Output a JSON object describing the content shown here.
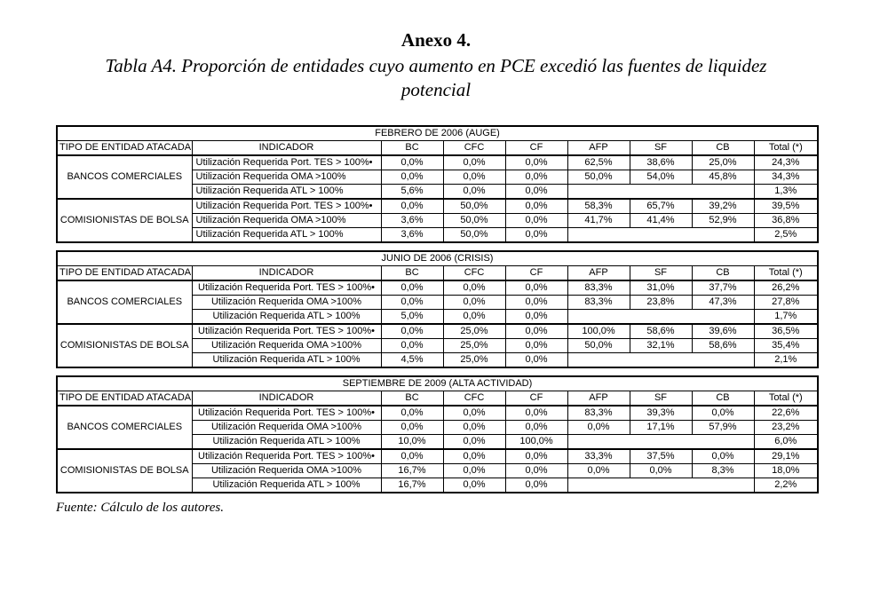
{
  "page": {
    "title": "Anexo 4.",
    "subtitle": "Tabla A4. Proporción de entidades cuyo aumento en PCE excedió las fuentes de liquidez potencial",
    "source_note": "Fuente: Cálculo de los autores."
  },
  "table_columns": [
    "TIPO DE ENTIDAD ATACADA",
    "INDICADOR",
    "BC",
    "CFC",
    "CF",
    "AFP",
    "SF",
    "CB",
    "Total (*)"
  ],
  "tables": [
    {
      "period": "FEBRERO DE 2006 (AUGE)",
      "groups": [
        {
          "entity": "BANCOS COMERCIALES",
          "rows": [
            {
              "indicator": "Utilización Requerida Port. TES > 100%•",
              "values": [
                "0,0%",
                "0,0%",
                "0,0%",
                "62,5%",
                "38,6%",
                "25,0%"
              ],
              "total": "24,3%"
            },
            {
              "indicator": "Utilización Requerida OMA >100%",
              "values": [
                "0,0%",
                "0,0%",
                "0,0%",
                "50,0%",
                "54,0%",
                "45,8%"
              ],
              "total": "34,3%"
            },
            {
              "indicator": "Utilización Requerida ATL > 100%",
              "values": [
                "5,6%",
                "0,0%",
                "0,0%"
              ],
              "blank_span": 3,
              "total": "1,3%"
            }
          ]
        },
        {
          "entity": "COMISIONISTAS DE BOLSA",
          "rows": [
            {
              "indicator": "Utilización Requerida Port. TES > 100%•",
              "values": [
                "0,0%",
                "50,0%",
                "0,0%",
                "58,3%",
                "65,7%",
                "39,2%"
              ],
              "total": "39,5%"
            },
            {
              "indicator": "Utilización Requerida OMA >100%",
              "values": [
                "3,6%",
                "50,0%",
                "0,0%",
                "41,7%",
                "41,4%",
                "52,9%"
              ],
              "total": "36,8%"
            },
            {
              "indicator": "Utilización Requerida ATL > 100%",
              "values": [
                "3,6%",
                "50,0%",
                "0,0%"
              ],
              "blank_span": 3,
              "total": "2,5%"
            }
          ]
        }
      ]
    },
    {
      "period": "JUNIO DE 2006 (CRISIS)",
      "groups": [
        {
          "entity": "BANCOS COMERCIALES",
          "rows": [
            {
              "indicator": "Utilización Requerida Port. TES > 100%•",
              "values": [
                "0,0%",
                "0,0%",
                "0,0%",
                "83,3%",
                "31,0%",
                "37,7%"
              ],
              "total": "26,2%"
            },
            {
              "indicator": "Utilización Requerida OMA >100%",
              "values": [
                "0,0%",
                "0,0%",
                "0,0%",
                "83,3%",
                "23,8%",
                "47,3%"
              ],
              "total": "27,8%"
            },
            {
              "indicator": "Utilización Requerida ATL > 100%",
              "values": [
                "5,0%",
                "0,0%",
                "0,0%"
              ],
              "blank_span": 3,
              "total": "1,7%"
            }
          ]
        },
        {
          "entity": "COMISIONISTAS DE BOLSA",
          "rows": [
            {
              "indicator": "Utilización Requerida Port. TES > 100%•",
              "values": [
                "0,0%",
                "25,0%",
                "0,0%",
                "100,0%",
                "58,6%",
                "39,6%"
              ],
              "total": "36,5%"
            },
            {
              "indicator": "Utilización Requerida OMA >100%",
              "values": [
                "0,0%",
                "25,0%",
                "0,0%",
                "50,0%",
                "32,1%",
                "58,6%"
              ],
              "total": "35,4%"
            },
            {
              "indicator": "Utilización Requerida ATL > 100%",
              "values": [
                "4,5%",
                "25,0%",
                "0,0%"
              ],
              "blank_span": 3,
              "total": "2,1%"
            }
          ]
        }
      ]
    },
    {
      "period": "SEPTIEMBRE DE 2009 (ALTA ACTIVIDAD)",
      "groups": [
        {
          "entity": "BANCOS COMERCIALES",
          "rows": [
            {
              "indicator": "Utilización Requerida Port. TES > 100%•",
              "values": [
                "0,0%",
                "0,0%",
                "0,0%",
                "83,3%",
                "39,3%",
                "0,0%"
              ],
              "total": "22,6%"
            },
            {
              "indicator": "Utilización Requerida OMA >100%",
              "values": [
                "0,0%",
                "0,0%",
                "0,0%",
                "0,0%",
                "17,1%",
                "57,9%"
              ],
              "total": "23,2%"
            },
            {
              "indicator": "Utilización Requerida ATL > 100%",
              "values": [
                "10,0%",
                "0,0%",
                "100,0%"
              ],
              "blank_span": 3,
              "total": "6,0%"
            }
          ]
        },
        {
          "entity": "COMISIONISTAS DE BOLSA",
          "rows": [
            {
              "indicator": "Utilización Requerida Port. TES > 100%•",
              "values": [
                "0,0%",
                "0,0%",
                "0,0%",
                "33,3%",
                "37,5%",
                "0,0%"
              ],
              "total": "29,1%"
            },
            {
              "indicator": "Utilización Requerida OMA >100%",
              "values": [
                "16,7%",
                "0,0%",
                "0,0%",
                "0,0%",
                "0,0%",
                "8,3%"
              ],
              "total": "18,0%"
            },
            {
              "indicator": "Utilización Requerida ATL > 100%",
              "values": [
                "16,7%",
                "0,0%",
                "0,0%"
              ],
              "blank_span": 3,
              "total": "2,2%"
            }
          ]
        }
      ]
    }
  ],
  "colors": {
    "shaded_cell": "#f2f2f2",
    "border": "#000000",
    "background": "#ffffff"
  }
}
